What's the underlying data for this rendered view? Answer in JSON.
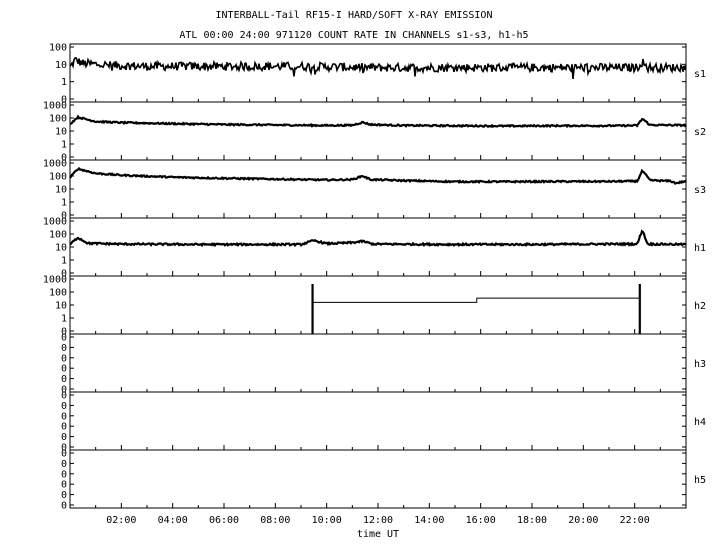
{
  "chart_data": {
    "type": "line",
    "title": "INTERBALL-Tail RF15-I HARD/SOFT X-RAY EMISSION",
    "subtitle": "ATL 00:00 24:00 971120  COUNT RATE IN CHANNELS s1-s3, h1-h5",
    "xlabel": "time UT",
    "x_range_hours": [
      0,
      24
    ],
    "x_ticks": [
      "02:00",
      "04:00",
      "06:00",
      "08:00",
      "10:00",
      "12:00",
      "14:00",
      "16:00",
      "18:00",
      "20:00",
      "22:00"
    ],
    "y_scale": "log",
    "grid": false,
    "panels": [
      {
        "name": "s1",
        "ylim": [
          0.1,
          100
        ],
        "y_ticks": [
          "100",
          "10",
          "1",
          "0"
        ],
        "noise": 0.22,
        "series": [
          [
            0.0,
            6
          ],
          [
            0.2,
            15
          ],
          [
            0.5,
            10
          ],
          [
            1.5,
            8
          ],
          [
            3,
            7
          ],
          [
            6,
            7
          ],
          [
            9,
            7
          ],
          [
            12,
            6
          ],
          [
            15,
            6
          ],
          [
            18,
            6
          ],
          [
            21,
            6
          ],
          [
            22.1,
            6
          ],
          [
            22.3,
            12
          ],
          [
            22.5,
            6
          ],
          [
            24,
            6
          ]
        ]
      },
      {
        "name": "s2",
        "ylim": [
          0.1,
          1000
        ],
        "y_ticks": [
          "1000",
          "100",
          "10",
          "1",
          "0"
        ],
        "noise": 0.05,
        "series": [
          [
            0.0,
            30
          ],
          [
            0.3,
            90
          ],
          [
            1.0,
            45
          ],
          [
            2.0,
            38
          ],
          [
            4,
            32
          ],
          [
            6,
            28
          ],
          [
            8,
            26
          ],
          [
            10,
            24
          ],
          [
            11,
            25
          ],
          [
            11.4,
            40
          ],
          [
            11.7,
            28
          ],
          [
            13,
            24
          ],
          [
            15,
            23
          ],
          [
            17,
            22
          ],
          [
            19,
            23
          ],
          [
            21,
            23
          ],
          [
            22.1,
            24
          ],
          [
            22.3,
            70
          ],
          [
            22.6,
            26
          ],
          [
            24,
            25
          ]
        ]
      },
      {
        "name": "s3",
        "ylim": [
          0.1,
          1000
        ],
        "y_ticks": [
          "1000",
          "100",
          "10",
          "1",
          "0"
        ],
        "noise": 0.05,
        "series": [
          [
            0.0,
            60
          ],
          [
            0.3,
            250
          ],
          [
            1.0,
            120
          ],
          [
            2.0,
            90
          ],
          [
            4,
            65
          ],
          [
            6,
            55
          ],
          [
            8,
            48
          ],
          [
            10,
            42
          ],
          [
            11,
            45
          ],
          [
            11.4,
            80
          ],
          [
            11.7,
            45
          ],
          [
            13,
            38
          ],
          [
            15,
            32
          ],
          [
            17,
            32
          ],
          [
            19,
            33
          ],
          [
            21,
            33
          ],
          [
            22.1,
            35
          ],
          [
            22.3,
            180
          ],
          [
            22.6,
            40
          ],
          [
            23.4,
            35
          ],
          [
            23.6,
            25
          ],
          [
            24,
            35
          ]
        ]
      },
      {
        "name": "h1",
        "ylim": [
          0.1,
          1000
        ],
        "y_ticks": [
          "1000",
          "100",
          "10",
          "1",
          "0"
        ],
        "noise": 0.06,
        "series": [
          [
            0.0,
            15
          ],
          [
            0.3,
            45
          ],
          [
            0.7,
            18
          ],
          [
            2,
            16
          ],
          [
            5,
            15
          ],
          [
            9,
            15
          ],
          [
            9.5,
            28
          ],
          [
            10,
            17
          ],
          [
            11,
            20
          ],
          [
            11.4,
            25
          ],
          [
            11.8,
            16
          ],
          [
            15,
            15
          ],
          [
            18,
            15
          ],
          [
            21,
            16
          ],
          [
            22.1,
            16
          ],
          [
            22.3,
            150
          ],
          [
            22.5,
            16
          ],
          [
            24,
            15
          ]
        ]
      },
      {
        "name": "h2",
        "ylim": [
          0.1,
          1000
        ],
        "y_ticks": [
          "1000",
          "100",
          "10",
          "1",
          "0"
        ],
        "noise": 0,
        "step": [
          [
            9.45,
            15
          ],
          [
            15.85,
            15
          ],
          [
            15.85,
            30
          ],
          [
            22.2,
            30
          ]
        ],
        "spikes": [
          9.45,
          22.2
        ]
      },
      {
        "name": "h3",
        "ylim": [
          0.1,
          1000
        ],
        "y_ticks": [
          "0",
          "0",
          "0",
          "0",
          "0",
          "0"
        ],
        "noise": 0
      },
      {
        "name": "h4",
        "ylim": [
          0.1,
          1000
        ],
        "y_ticks": [
          "0",
          "0",
          "0",
          "0",
          "0",
          "0"
        ],
        "noise": 0
      },
      {
        "name": "h5",
        "ylim": [
          0.1,
          1000
        ],
        "y_ticks": [
          "0",
          "0",
          "0",
          "0",
          "0",
          "0"
        ],
        "noise": 0
      }
    ]
  }
}
